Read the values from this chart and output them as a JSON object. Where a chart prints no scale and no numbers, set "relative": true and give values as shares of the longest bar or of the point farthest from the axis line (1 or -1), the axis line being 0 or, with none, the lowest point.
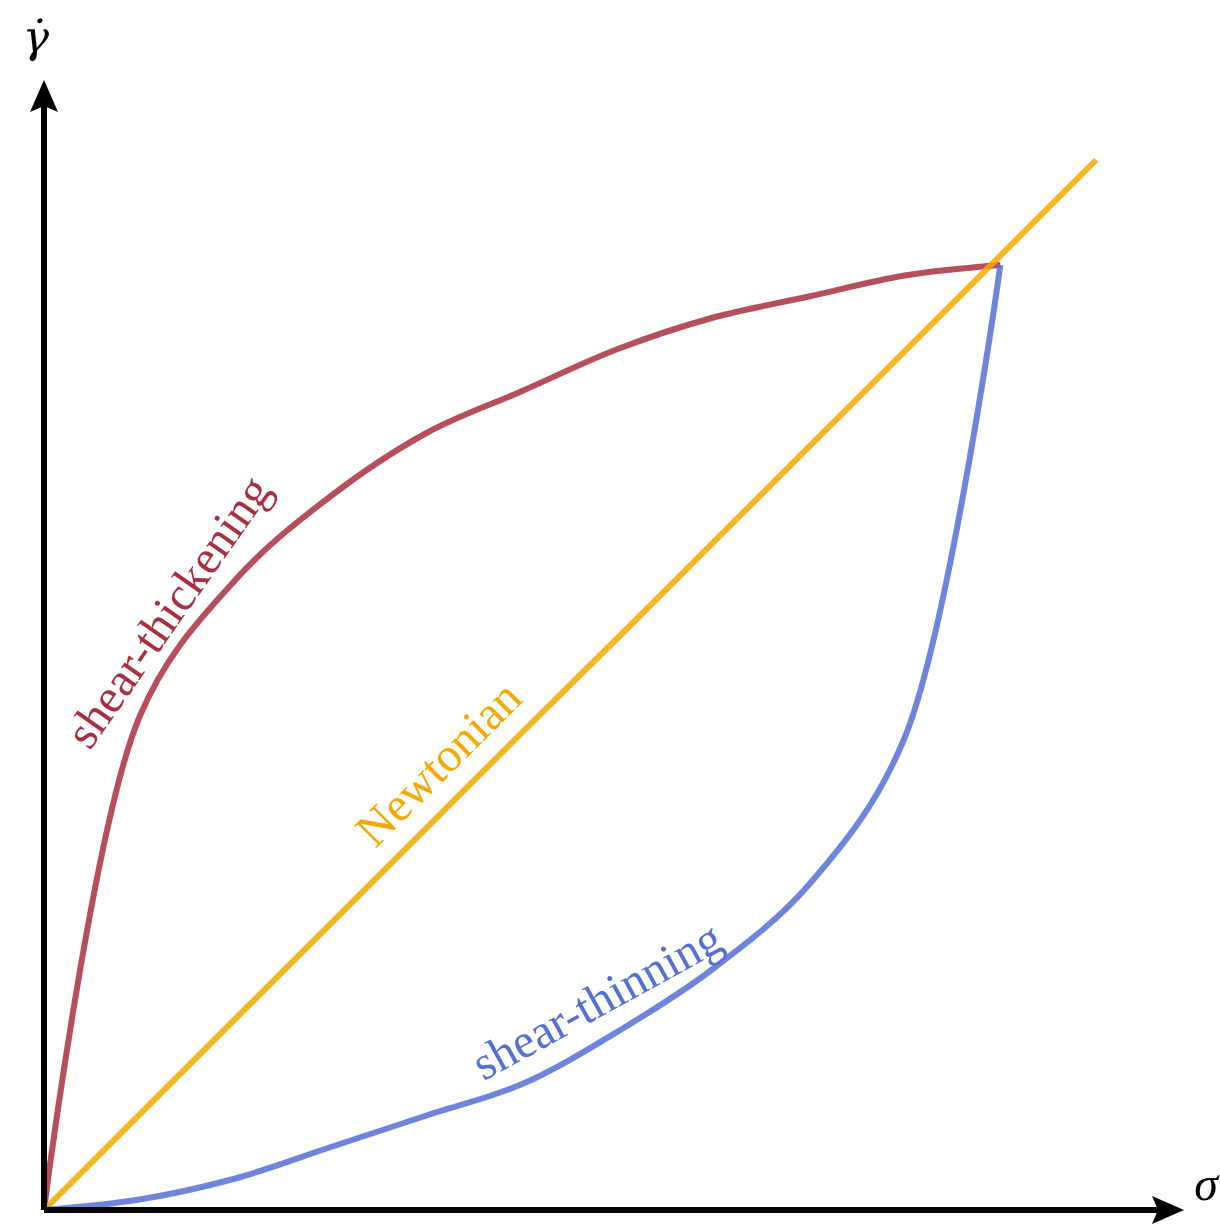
{
  "chart_data": {
    "type": "line",
    "relative": true,
    "xlabel": "σ",
    "ylabel": "γ̇",
    "marker": "none",
    "line_style": "solid",
    "categories": [
      null,
      null,
      null,
      null,
      null,
      null,
      null,
      null,
      null,
      null,
      null,
      null
    ],
    "series": [
      {
        "name": "shear-thickening",
        "color": "#a8303e",
        "values": [
          0,
          0.47,
          0.6,
          0.68,
          0.74,
          0.78,
          0.82,
          0.85,
          0.87,
          0.89,
          0.9,
          null
        ]
      },
      {
        "name": "Newtonian",
        "color": "#f5a800",
        "values": [
          0,
          0.091,
          0.182,
          0.273,
          0.364,
          0.455,
          0.545,
          0.636,
          0.727,
          0.818,
          0.909,
          1
        ]
      },
      {
        "name": "shear-thinning",
        "color": "#5470d4",
        "values": [
          0,
          0.01,
          0.03,
          0.06,
          0.09,
          0.12,
          0.17,
          0.23,
          0.31,
          0.45,
          0.9,
          null
        ]
      }
    ]
  }
}
